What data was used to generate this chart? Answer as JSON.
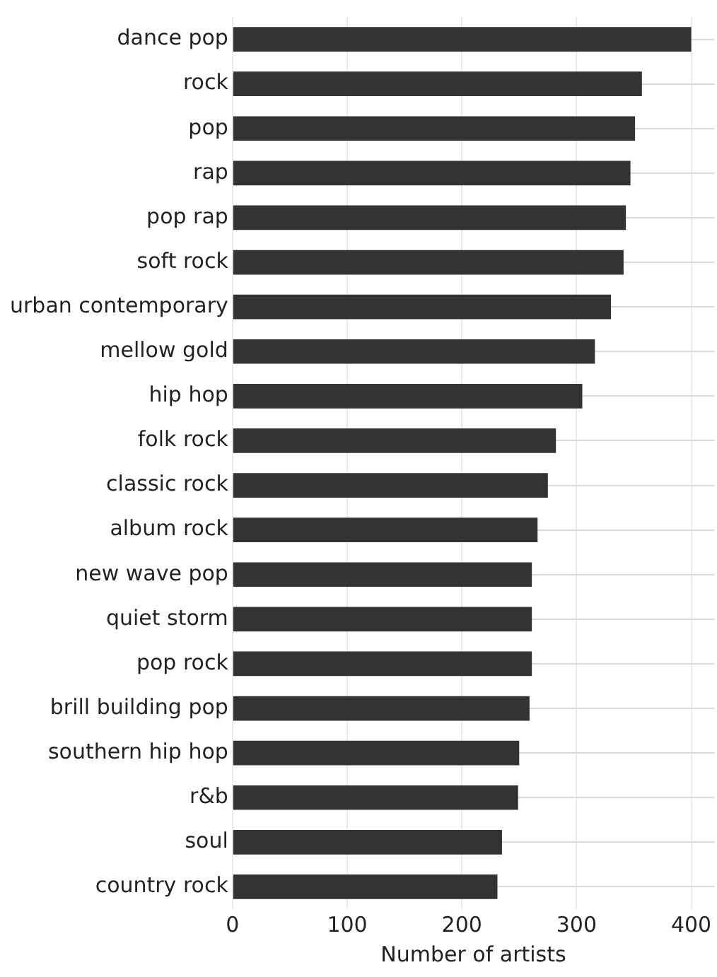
{
  "chart_data": {
    "type": "bar",
    "orientation": "horizontal",
    "xlabel": "Number of artists",
    "categories": [
      "dance pop",
      "rock",
      "pop",
      "rap",
      "pop rap",
      "soft rock",
      "urban contemporary",
      "mellow gold",
      "hip hop",
      "folk rock",
      "classic rock",
      "album rock",
      "new wave pop",
      "quiet storm",
      "pop rock",
      "brill building pop",
      "southern hip hop",
      "r&b",
      "soul",
      "country rock"
    ],
    "values": [
      400,
      357,
      351,
      347,
      343,
      341,
      330,
      316,
      305,
      282,
      275,
      266,
      261,
      261,
      261,
      259,
      250,
      249,
      235,
      231
    ],
    "color": "#333333",
    "xlim": [
      0,
      420
    ],
    "xticks": [
      0,
      100,
      200,
      300,
      400
    ],
    "grid": true,
    "legend": false
  }
}
